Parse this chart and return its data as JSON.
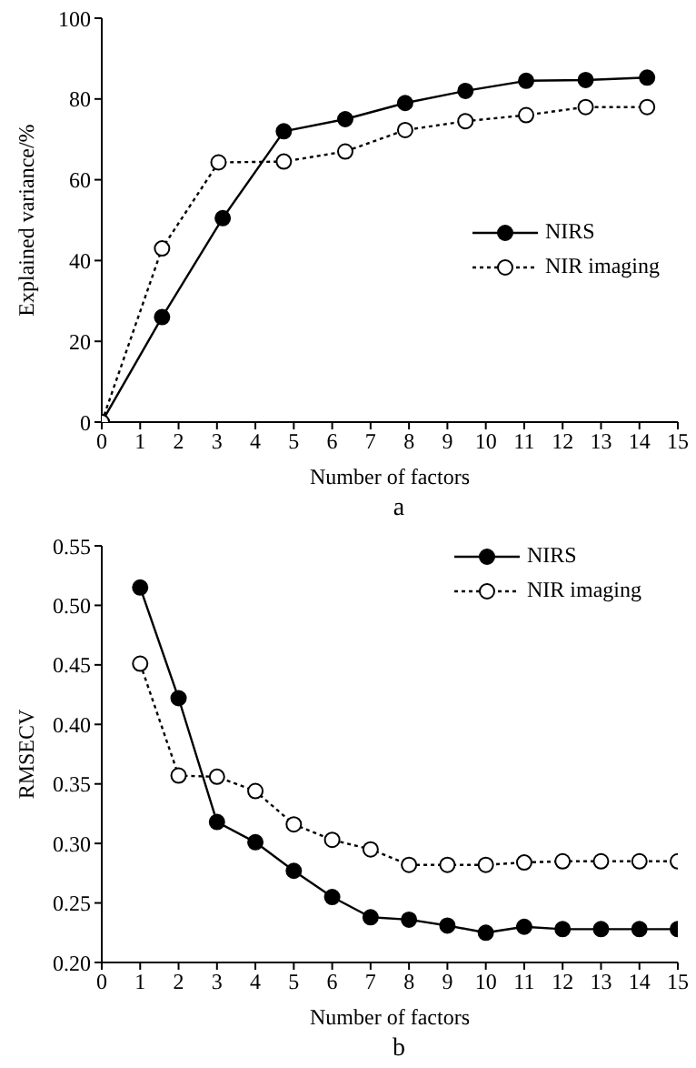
{
  "chart_data": [
    {
      "type": "line",
      "xlabel": "Number of factors",
      "ylabel": "Explained variance/%",
      "annotations": [
        "a"
      ],
      "xlim": [
        0,
        15
      ],
      "xticks": [
        0,
        1,
        2,
        3,
        4,
        5,
        6,
        7,
        8,
        9,
        10,
        11,
        12,
        13,
        14,
        15
      ],
      "ylim": [
        0,
        100
      ],
      "yticks": [
        0,
        20,
        40,
        60,
        80,
        100
      ],
      "grid": false,
      "legend": "right",
      "marker": "circle",
      "series": [
        {
          "name": "NIRS",
          "color": "#000000",
          "line_style": "solid",
          "x": [
            0,
            1.57,
            3.15,
            4.74,
            6.34,
            7.9,
            9.47,
            11.05,
            12.6,
            14.2
          ],
          "values": [
            0,
            26,
            50.5,
            72,
            75,
            79,
            82,
            84.5,
            84.7,
            85.3
          ]
        },
        {
          "name": "NIR imaging",
          "color": "#000000",
          "line_style": "dotted",
          "x": [
            0,
            1.57,
            3.04,
            4.74,
            6.34,
            7.9,
            9.47,
            11.05,
            12.6,
            14.2
          ],
          "values": [
            0,
            43,
            64.3,
            64.5,
            67,
            72.3,
            74.5,
            76,
            78,
            78
          ]
        }
      ]
    },
    {
      "type": "line",
      "xlabel": "Number of factors",
      "ylabel": "RMSECV",
      "annotations": [
        "b"
      ],
      "xlim": [
        0,
        15
      ],
      "xticks": [
        0,
        1,
        2,
        3,
        4,
        5,
        6,
        7,
        8,
        9,
        10,
        11,
        12,
        13,
        14,
        15
      ],
      "ylim": [
        0.2,
        0.55
      ],
      "yticks": [
        {
          "value": 0.2,
          "label": "0.20"
        },
        {
          "value": 0.25,
          "label": "0.25"
        },
        {
          "value": 0.3,
          "label": "0.30"
        },
        {
          "value": 0.35,
          "label": "0.35"
        },
        {
          "value": 0.4,
          "label": "0.40"
        },
        {
          "value": 0.45,
          "label": "0.45"
        },
        {
          "value": 0.5,
          "label": "0.50"
        },
        {
          "value": 0.55,
          "label": "0.55"
        }
      ],
      "grid": false,
      "legend": "top right",
      "marker": "circle",
      "series": [
        {
          "name": "NIRS",
          "color": "#000000",
          "line_style": "solid",
          "x": [
            1,
            2,
            3,
            4,
            5,
            6,
            7,
            8,
            9,
            10,
            11,
            12,
            13,
            14,
            15
          ],
          "values": [
            0.515,
            0.422,
            0.318,
            0.301,
            0.277,
            0.255,
            0.238,
            0.236,
            0.231,
            0.225,
            0.23,
            0.228,
            0.228,
            0.228,
            0.228
          ]
        },
        {
          "name": "NIR imaging",
          "color": "#000000",
          "line_style": "dotted",
          "x": [
            1,
            2,
            3,
            4,
            5,
            6,
            7,
            8,
            9,
            10,
            11,
            12,
            13,
            14,
            15
          ],
          "values": [
            0.451,
            0.357,
            0.356,
            0.344,
            0.316,
            0.303,
            0.295,
            0.282,
            0.282,
            0.282,
            0.284,
            0.285,
            0.285,
            0.285,
            0.285
          ]
        }
      ]
    }
  ]
}
